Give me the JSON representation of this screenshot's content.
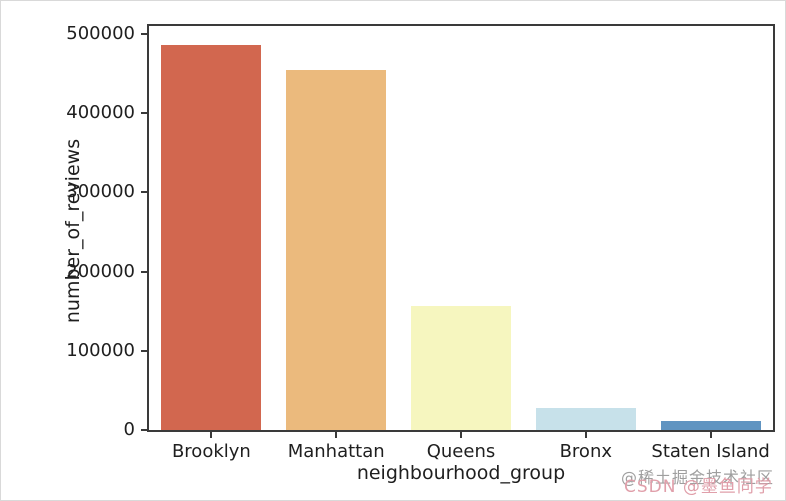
{
  "chart_data": {
    "type": "bar",
    "title": "",
    "xlabel": "neighbourhood_group",
    "ylabel": "number_of_reviews",
    "categories": [
      "Brooklyn",
      "Manhattan",
      "Queens",
      "Bronx",
      "Staten Island"
    ],
    "values": [
      486000,
      455000,
      157000,
      28000,
      12000
    ],
    "bar_colors": [
      "#d2674f",
      "#ebba7d",
      "#f6f6bf",
      "#c7e1ea",
      "#6094c1"
    ],
    "ylim": [
      0,
      510000
    ],
    "yticks": [
      0,
      100000,
      200000,
      300000,
      400000,
      500000
    ],
    "ytick_labels": [
      "0",
      "100000",
      "200000",
      "300000",
      "400000",
      "500000"
    ],
    "grid": false,
    "legend": null,
    "bar_width_fraction": 0.8
  },
  "watermarks": {
    "juejin": "@稀土掘金技术社区",
    "csdn": "CSDN @墨鱼同学"
  },
  "style_colors": {
    "spine": "#3a3a3a",
    "text": "#1f1f1f",
    "watermark_gray": "#9f9f9f",
    "watermark_pink": "#e09faa"
  }
}
